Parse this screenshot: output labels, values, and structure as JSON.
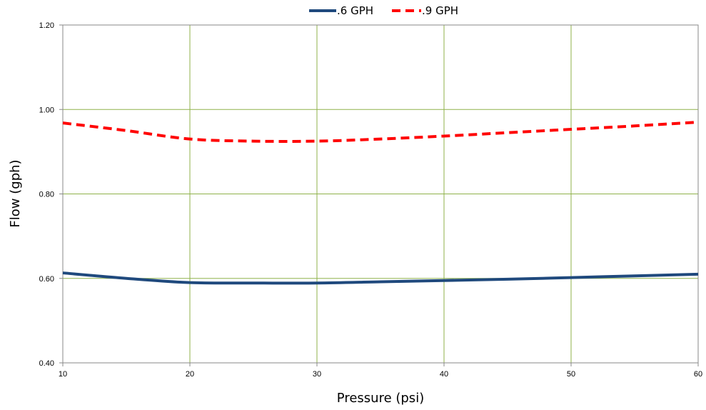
{
  "chart_data": {
    "type": "line",
    "title": "",
    "xlabel": "Pressure (psi)",
    "ylabel": "Flow (gph)",
    "xlim": [
      10,
      60
    ],
    "ylim": [
      0.4,
      1.2
    ],
    "x_ticks": [
      "10",
      "20",
      "30",
      "40",
      "50",
      "60"
    ],
    "y_ticks": [
      "0.40",
      "0.60",
      "0.80",
      "1.00",
      "1.20"
    ],
    "grid": true,
    "grid_color": "#8fb24a",
    "legend_position": "top",
    "series": [
      {
        "name": ".6 GPH",
        "color": "#1f497d",
        "style": "solid",
        "x": [
          10,
          15,
          20,
          25,
          30,
          35,
          40,
          45,
          50,
          55,
          60
        ],
        "y": [
          0.613,
          0.6,
          0.59,
          0.589,
          0.589,
          0.592,
          0.595,
          0.598,
          0.602,
          0.606,
          0.61
        ]
      },
      {
        "name": ".9 GPH",
        "color": "#ff0000",
        "style": "dashed",
        "x": [
          10,
          15,
          20,
          25,
          30,
          35,
          40,
          45,
          50,
          55,
          60
        ],
        "y": [
          0.968,
          0.95,
          0.93,
          0.925,
          0.925,
          0.93,
          0.937,
          0.945,
          0.953,
          0.961,
          0.97
        ]
      }
    ]
  }
}
